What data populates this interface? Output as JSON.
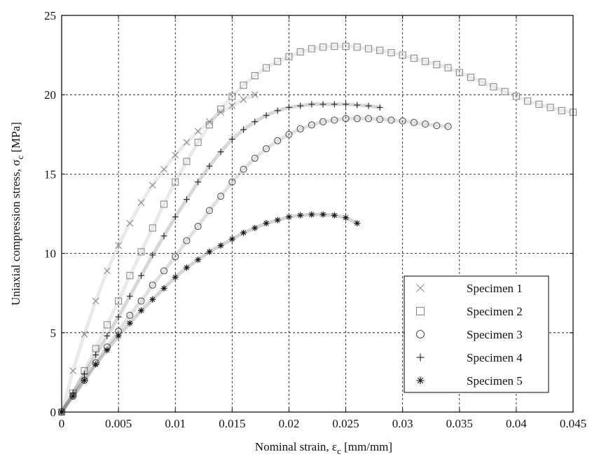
{
  "chart_data": {
    "type": "scatter",
    "xlabel": "Nominal strain, ε",
    "xlabel_sub": "c",
    "xlabel_unit": " [mm/mm]",
    "ylabel": "Uniaxial compression stress, σ",
    "ylabel_sub": "c",
    "ylabel_unit": " [MPa]",
    "xlim": [
      0,
      0.045
    ],
    "ylim": [
      0,
      25
    ],
    "xticks": [
      0,
      0.005,
      0.01,
      0.015,
      0.02,
      0.025,
      0.03,
      0.035,
      0.04,
      0.045
    ],
    "xtick_labels": [
      "0",
      "0.005",
      "0.01",
      "0.015",
      "0.02",
      "0.025",
      "0.03",
      "0.035",
      "0.04",
      "0.045"
    ],
    "yticks": [
      0,
      5,
      10,
      15,
      20,
      25
    ],
    "ytick_labels": [
      "0",
      "5",
      "10",
      "15",
      "20",
      "25"
    ],
    "grid": true,
    "legend_position": "bottom-right",
    "series": [
      {
        "name": "Specimen 1",
        "marker": "x",
        "color": "#8a8a8a",
        "x": [
          0,
          0.001,
          0.002,
          0.003,
          0.004,
          0.005,
          0.006,
          0.007,
          0.008,
          0.009,
          0.01,
          0.011,
          0.012,
          0.013,
          0.014,
          0.015,
          0.016,
          0.017
        ],
        "y": [
          0,
          2.6,
          4.9,
          7.0,
          8.9,
          10.5,
          11.9,
          13.2,
          14.3,
          15.3,
          16.2,
          17.0,
          17.7,
          18.3,
          18.9,
          19.3,
          19.7,
          20.0
        ]
      },
      {
        "name": "Specimen 2",
        "marker": "square",
        "color": "#8a8a8a",
        "x": [
          0,
          0.001,
          0.002,
          0.003,
          0.004,
          0.005,
          0.006,
          0.007,
          0.008,
          0.009,
          0.01,
          0.011,
          0.012,
          0.013,
          0.014,
          0.015,
          0.016,
          0.017,
          0.018,
          0.019,
          0.02,
          0.021,
          0.022,
          0.023,
          0.024,
          0.025,
          0.026,
          0.027,
          0.028,
          0.029,
          0.03,
          0.031,
          0.032,
          0.033,
          0.034,
          0.035,
          0.036,
          0.037,
          0.038,
          0.039,
          0.04,
          0.041,
          0.042,
          0.043,
          0.044,
          0.045
        ],
        "y": [
          0,
          1.2,
          2.6,
          4.0,
          5.5,
          7.0,
          8.6,
          10.1,
          11.6,
          13.1,
          14.5,
          15.8,
          17.0,
          18.1,
          19.1,
          19.9,
          20.6,
          21.2,
          21.7,
          22.1,
          22.4,
          22.7,
          22.9,
          23.0,
          23.05,
          23.05,
          23.0,
          22.9,
          22.8,
          22.65,
          22.5,
          22.3,
          22.1,
          21.9,
          21.7,
          21.4,
          21.1,
          20.8,
          20.5,
          20.2,
          19.9,
          19.6,
          19.4,
          19.2,
          19.0,
          18.9
        ]
      },
      {
        "name": "Specimen 3",
        "marker": "circle",
        "color": "#555555",
        "x": [
          0,
          0.001,
          0.002,
          0.003,
          0.004,
          0.005,
          0.006,
          0.007,
          0.008,
          0.009,
          0.01,
          0.011,
          0.012,
          0.013,
          0.014,
          0.015,
          0.016,
          0.017,
          0.018,
          0.019,
          0.02,
          0.021,
          0.022,
          0.023,
          0.024,
          0.025,
          0.026,
          0.027,
          0.028,
          0.029,
          0.03,
          0.031,
          0.032,
          0.033,
          0.034
        ],
        "y": [
          0,
          1.0,
          2.0,
          3.1,
          4.1,
          5.1,
          6.1,
          7.0,
          8.0,
          8.9,
          9.8,
          10.8,
          11.7,
          12.7,
          13.6,
          14.5,
          15.3,
          16.0,
          16.6,
          17.1,
          17.5,
          17.85,
          18.1,
          18.3,
          18.4,
          18.5,
          18.5,
          18.5,
          18.45,
          18.4,
          18.35,
          18.25,
          18.15,
          18.05,
          18.0
        ]
      },
      {
        "name": "Specimen 4",
        "marker": "plus",
        "color": "#222222",
        "x": [
          0,
          0.001,
          0.002,
          0.003,
          0.004,
          0.005,
          0.006,
          0.007,
          0.008,
          0.009,
          0.01,
          0.011,
          0.012,
          0.013,
          0.014,
          0.015,
          0.016,
          0.017,
          0.018,
          0.019,
          0.02,
          0.021,
          0.022,
          0.023,
          0.024,
          0.025,
          0.026,
          0.027,
          0.028
        ],
        "y": [
          0,
          1.2,
          2.4,
          3.6,
          4.8,
          6.0,
          7.3,
          8.6,
          9.9,
          11.1,
          12.3,
          13.4,
          14.5,
          15.5,
          16.4,
          17.2,
          17.8,
          18.3,
          18.7,
          19.0,
          19.2,
          19.3,
          19.4,
          19.4,
          19.4,
          19.4,
          19.35,
          19.3,
          19.2
        ]
      },
      {
        "name": "Specimen 5",
        "marker": "asterisk",
        "color": "#111111",
        "x": [
          0,
          0.001,
          0.002,
          0.003,
          0.004,
          0.005,
          0.006,
          0.007,
          0.008,
          0.009,
          0.01,
          0.011,
          0.012,
          0.013,
          0.014,
          0.015,
          0.016,
          0.017,
          0.018,
          0.019,
          0.02,
          0.021,
          0.022,
          0.023,
          0.024,
          0.025,
          0.026
        ],
        "y": [
          0,
          1.0,
          2.0,
          3.0,
          3.9,
          4.8,
          5.6,
          6.4,
          7.1,
          7.8,
          8.5,
          9.1,
          9.6,
          10.1,
          10.5,
          10.9,
          11.3,
          11.6,
          11.9,
          12.1,
          12.3,
          12.4,
          12.45,
          12.45,
          12.4,
          12.25,
          11.9
        ]
      }
    ]
  }
}
